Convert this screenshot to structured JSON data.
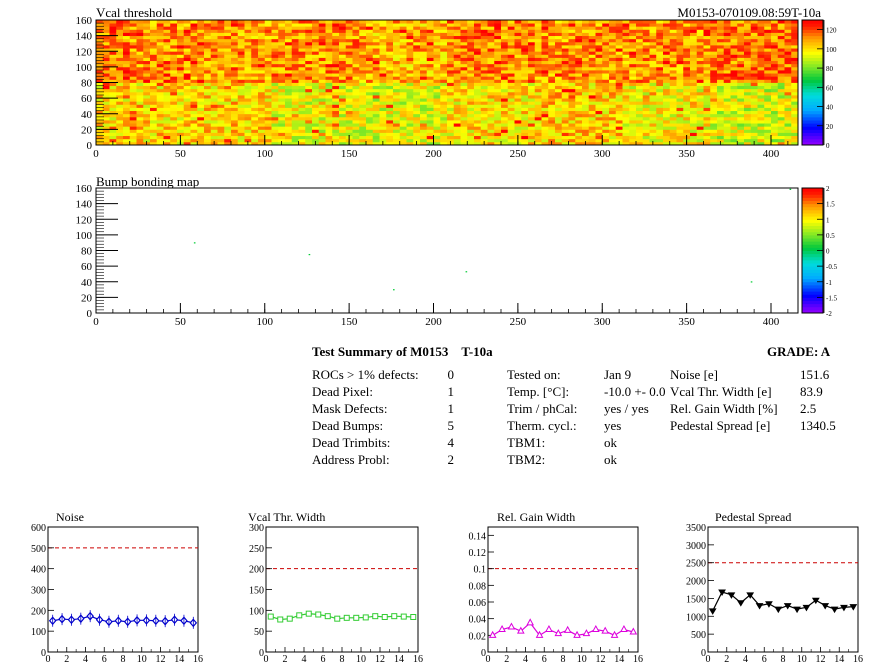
{
  "header": {
    "top_title": "Vcal threshold",
    "module_id": "M0153-070109.08:59T-10a"
  },
  "maps": {
    "x_ticks": [
      "0",
      "50",
      "100",
      "150",
      "200",
      "250",
      "300",
      "350",
      "400"
    ],
    "y_ticks": [
      "0",
      "20",
      "40",
      "60",
      "80",
      "100",
      "120",
      "140",
      "160"
    ],
    "vcal": {
      "title": "Vcal threshold",
      "palette_ticks": [
        "0",
        "20",
        "40",
        "60",
        "80",
        "100",
        "120"
      ]
    },
    "bump": {
      "title": "Bump bonding map",
      "palette_ticks": [
        "-2",
        "-1.5",
        "-1",
        "-0.5",
        "0",
        "0.5",
        "1",
        "1.5",
        "2"
      ]
    }
  },
  "summary": {
    "title": "Test Summary of M0153",
    "temp_label": "T-10a",
    "grade": "GRADE:  A",
    "defects": [
      {
        "label": "ROCs > 1% defects:",
        "value": "0"
      },
      {
        "label": "Dead Pixel:",
        "value": "1"
      },
      {
        "label": "Mask Defects:",
        "value": "1"
      },
      {
        "label": "Dead Bumps:",
        "value": "5"
      },
      {
        "label": "Dead Trimbits:",
        "value": "4"
      },
      {
        "label": "Address Probl:",
        "value": "2"
      }
    ],
    "conditions": [
      {
        "label": "Tested on:",
        "value": "Jan 9"
      },
      {
        "label": "Temp. [°C]:",
        "value": "-10.0 +- 0.0"
      },
      {
        "label": "Trim / phCal:",
        "value": "yes / yes"
      },
      {
        "label": "Therm. cycl.:",
        "value": "yes"
      },
      {
        "label": "TBM1:",
        "value": "ok"
      },
      {
        "label": "TBM2:",
        "value": "ok"
      }
    ],
    "results": [
      {
        "label": "Noise [e]",
        "value": "151.6"
      },
      {
        "label": "Vcal Thr. Width [e]",
        "value": "83.9"
      },
      {
        "label": "Rel. Gain Width [%]",
        "value": "2.5"
      },
      {
        "label": "Pedestal Spread [e]",
        "value": "1340.5"
      }
    ]
  },
  "chart_data": [
    {
      "type": "heatmap",
      "title": "Vcal threshold",
      "xlim": [
        0,
        416
      ],
      "ylim": [
        0,
        160
      ],
      "zlim": [
        0,
        130
      ],
      "palette_ticks": [
        0,
        20,
        40,
        60,
        80,
        100,
        120
      ],
      "roc_means": [
        [
          101,
          102,
          95,
          94,
          100,
          103,
          98,
          92
        ],
        [
          111,
          109,
          111,
          107,
          112,
          110,
          110,
          114
        ]
      ]
    },
    {
      "type": "heatmap",
      "title": "Bump bonding map",
      "xlim": [
        0,
        416
      ],
      "ylim": [
        0,
        160
      ],
      "zlim": [
        -2,
        2
      ],
      "dead_bumps": [
        [
          58,
          89
        ],
        [
          126,
          74
        ],
        [
          176,
          29
        ],
        [
          219,
          52
        ],
        [
          388,
          39
        ]
      ],
      "extra_pixels": [
        [
          411,
          159
        ]
      ]
    },
    {
      "type": "line",
      "title": "Noise",
      "color": "#0000cc",
      "marker": "diamond",
      "x": [
        0,
        1,
        2,
        3,
        4,
        5,
        6,
        7,
        8,
        9,
        10,
        11,
        12,
        13,
        14,
        15
      ],
      "values": [
        150,
        158,
        155,
        160,
        172,
        155,
        145,
        150,
        145,
        152,
        152,
        150,
        148,
        155,
        150,
        140
      ],
      "ylim": [
        0,
        600
      ],
      "yticks": [
        0,
        100,
        200,
        300,
        400,
        500,
        600
      ],
      "threshold": 500
    },
    {
      "type": "line",
      "title": "Vcal Thr. Width",
      "color": "#33cc33",
      "marker": "square",
      "x": [
        0,
        1,
        2,
        3,
        4,
        5,
        6,
        7,
        8,
        9,
        10,
        11,
        12,
        13,
        14,
        15
      ],
      "values": [
        85,
        78,
        80,
        88,
        92,
        90,
        86,
        80,
        82,
        82,
        83,
        86,
        84,
        86,
        85,
        84
      ],
      "ylim": [
        0,
        300
      ],
      "yticks": [
        0,
        50,
        100,
        150,
        200,
        250,
        300
      ],
      "threshold": 200
    },
    {
      "type": "line",
      "title": "Rel. Gain Width",
      "color": "#dd00dd",
      "marker": "triangle-up",
      "x": [
        0,
        1,
        2,
        3,
        4,
        5,
        6,
        7,
        8,
        9,
        10,
        11,
        12,
        13,
        14,
        15
      ],
      "values": [
        0.02,
        0.027,
        0.03,
        0.025,
        0.035,
        0.02,
        0.027,
        0.022,
        0.026,
        0.02,
        0.022,
        0.027,
        0.025,
        0.02,
        0.027,
        0.024
      ],
      "ylim": [
        0,
        0.15
      ],
      "yticks": [
        0,
        0.02,
        0.04,
        0.06,
        0.08,
        0.1,
        0.12,
        0.14
      ],
      "threshold": 0.1
    },
    {
      "type": "line",
      "title": "Pedestal Spread",
      "color": "#000000",
      "marker": "triangle-down",
      "x": [
        0,
        1,
        2,
        3,
        4,
        5,
        6,
        7,
        8,
        9,
        10,
        11,
        12,
        13,
        14,
        15
      ],
      "values": [
        1150,
        1680,
        1600,
        1380,
        1600,
        1300,
        1350,
        1200,
        1300,
        1200,
        1250,
        1450,
        1300,
        1200,
        1250,
        1270
      ],
      "ylim": [
        0,
        3500
      ],
      "yticks": [
        0,
        500,
        1000,
        1500,
        2000,
        2500,
        3000,
        3500
      ],
      "threshold": 2500
    }
  ],
  "small_x_ticks": [
    "0",
    "2",
    "4",
    "6",
    "8",
    "10",
    "12",
    "14",
    "16"
  ]
}
